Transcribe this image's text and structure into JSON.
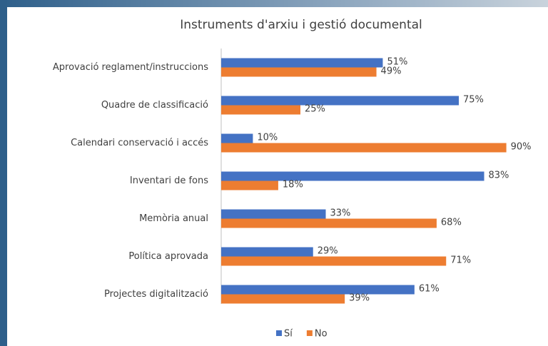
{
  "chart_data": {
    "type": "bar",
    "orientation": "horizontal",
    "title": "Instruments d'arxiu i gestió documental",
    "categories": [
      "Aprovació reglament/instruccions",
      "Quadre de classificació",
      "Calendari conservació i accés",
      "Inventari de fons",
      "Memòria anual",
      "Política aprovada",
      "Projectes digitalització"
    ],
    "series": [
      {
        "name": "Sí",
        "color": "#4472c4",
        "values": [
          51,
          75,
          10,
          83,
          33,
          29,
          61
        ],
        "value_labels": [
          "51%",
          "75%",
          "10%",
          "83%",
          "33%",
          "29%",
          "61%"
        ]
      },
      {
        "name": "No",
        "color": "#ed7d31",
        "values": [
          49,
          25,
          90,
          18,
          68,
          71,
          39
        ],
        "value_labels": [
          "49%",
          "25%",
          "90%",
          "18%",
          "68%",
          "71%",
          "39%"
        ]
      }
    ],
    "xlim": [
      0,
      100
    ],
    "legend": "bottom"
  }
}
